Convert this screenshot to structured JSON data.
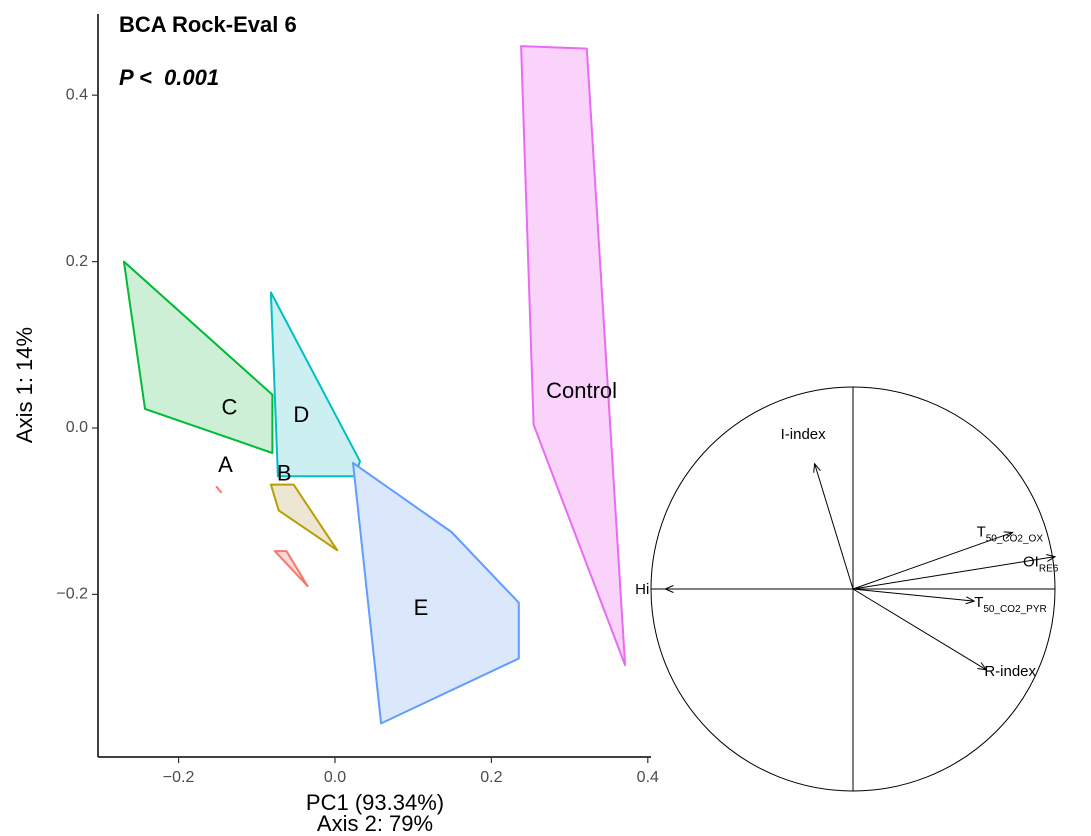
{
  "chart_data": [
    {
      "type": "scatter",
      "subtype": "convex-hull ordination",
      "title": "BCA Rock-Eval 6",
      "subtitle": "P <  0.001",
      "xlabel": "Axis 2: 79%",
      "xlabel_obscured": "PC1 (93.34%)",
      "ylabel": "Axis 1: 14%",
      "xlim": [
        -0.3,
        0.41
      ],
      "ylim": [
        -0.4,
        0.5
      ],
      "xticks": [
        -0.2,
        0.0,
        0.2,
        0.4
      ],
      "xtick_labels": [
        "−0.2",
        "0.0",
        "0.2",
        "0.4"
      ],
      "yticks": [
        -0.2,
        0.0,
        0.2,
        0.4
      ],
      "ytick_labels": [
        "−0.2",
        "0.0",
        "0.2",
        "0.4"
      ],
      "grid": false,
      "groups": [
        {
          "name": "Control",
          "color": "#E76BF3",
          "fill": "#FAD3FB",
          "hull": [
            [
              0.238,
              0.459
            ],
            [
              0.322,
              0.456
            ],
            [
              0.371,
              -0.285
            ],
            [
              0.254,
              0.004
            ]
          ],
          "label_at": [
            0.27,
            0.043
          ]
        },
        {
          "name": "C",
          "color": "#00BA38",
          "fill": "#CCEFD5",
          "hull": [
            [
              -0.27,
              0.2
            ],
            [
              -0.08,
              0.04
            ],
            [
              -0.08,
              -0.03
            ],
            [
              -0.243,
              0.023
            ]
          ],
          "label_at": [
            -0.135,
            0.023
          ]
        },
        {
          "name": "D",
          "color": "#00BFC4",
          "fill": "#CCF0F1",
          "hull": [
            [
              -0.082,
              0.163
            ],
            [
              0.032,
              -0.04
            ],
            [
              0.025,
              -0.058
            ],
            [
              -0.073,
              -0.058
            ]
          ],
          "label_at": [
            -0.043,
            0.014
          ]
        },
        {
          "name": "E",
          "color": "#619CFF",
          "fill": "#DBE7FB",
          "hull": [
            [
              0.023,
              -0.042
            ],
            [
              0.149,
              -0.125
            ],
            [
              0.235,
              -0.21
            ],
            [
              0.235,
              -0.277
            ],
            [
              0.059,
              -0.355
            ]
          ],
          "label_at": [
            0.11,
            -0.218
          ]
        },
        {
          "name": "B",
          "color": "#B79F00",
          "fill": "#EDE6D3",
          "hull": [
            [
              -0.082,
              -0.068
            ],
            [
              -0.053,
              -0.068
            ],
            [
              0.003,
              -0.147
            ],
            [
              -0.072,
              -0.099
            ]
          ],
          "label_at": [
            -0.065,
            -0.056
          ]
        },
        {
          "name": "A",
          "color": "#F8766D",
          "fill": "#FCDAD7",
          "hull": [
            [
              -0.077,
              -0.148
            ],
            [
              -0.062,
              -0.148
            ],
            [
              -0.035,
              -0.19
            ]
          ],
          "extra_segment": [
            [
              -0.152,
              -0.07
            ],
            [
              -0.145,
              -0.078
            ]
          ],
          "label_at": [
            -0.14,
            -0.046
          ]
        }
      ]
    },
    {
      "type": "correlation-circle",
      "variables": [
        {
          "name": "I-index",
          "sub": "",
          "x": -0.19,
          "y": 0.62
        },
        {
          "name": "T",
          "sub": "50_CO2_OX",
          "x": 0.79,
          "y": 0.28
        },
        {
          "name": "OI",
          "sub": "RE6",
          "x": 1.0,
          "y": 0.16
        },
        {
          "name": "Hi",
          "sub": "",
          "x": -0.93,
          "y": 0.0
        },
        {
          "name": "T",
          "sub": "50_CO2_PYR",
          "x": 0.6,
          "y": -0.06
        },
        {
          "name": "R-index",
          "sub": "",
          "x": 0.66,
          "y": -0.4
        }
      ]
    }
  ]
}
